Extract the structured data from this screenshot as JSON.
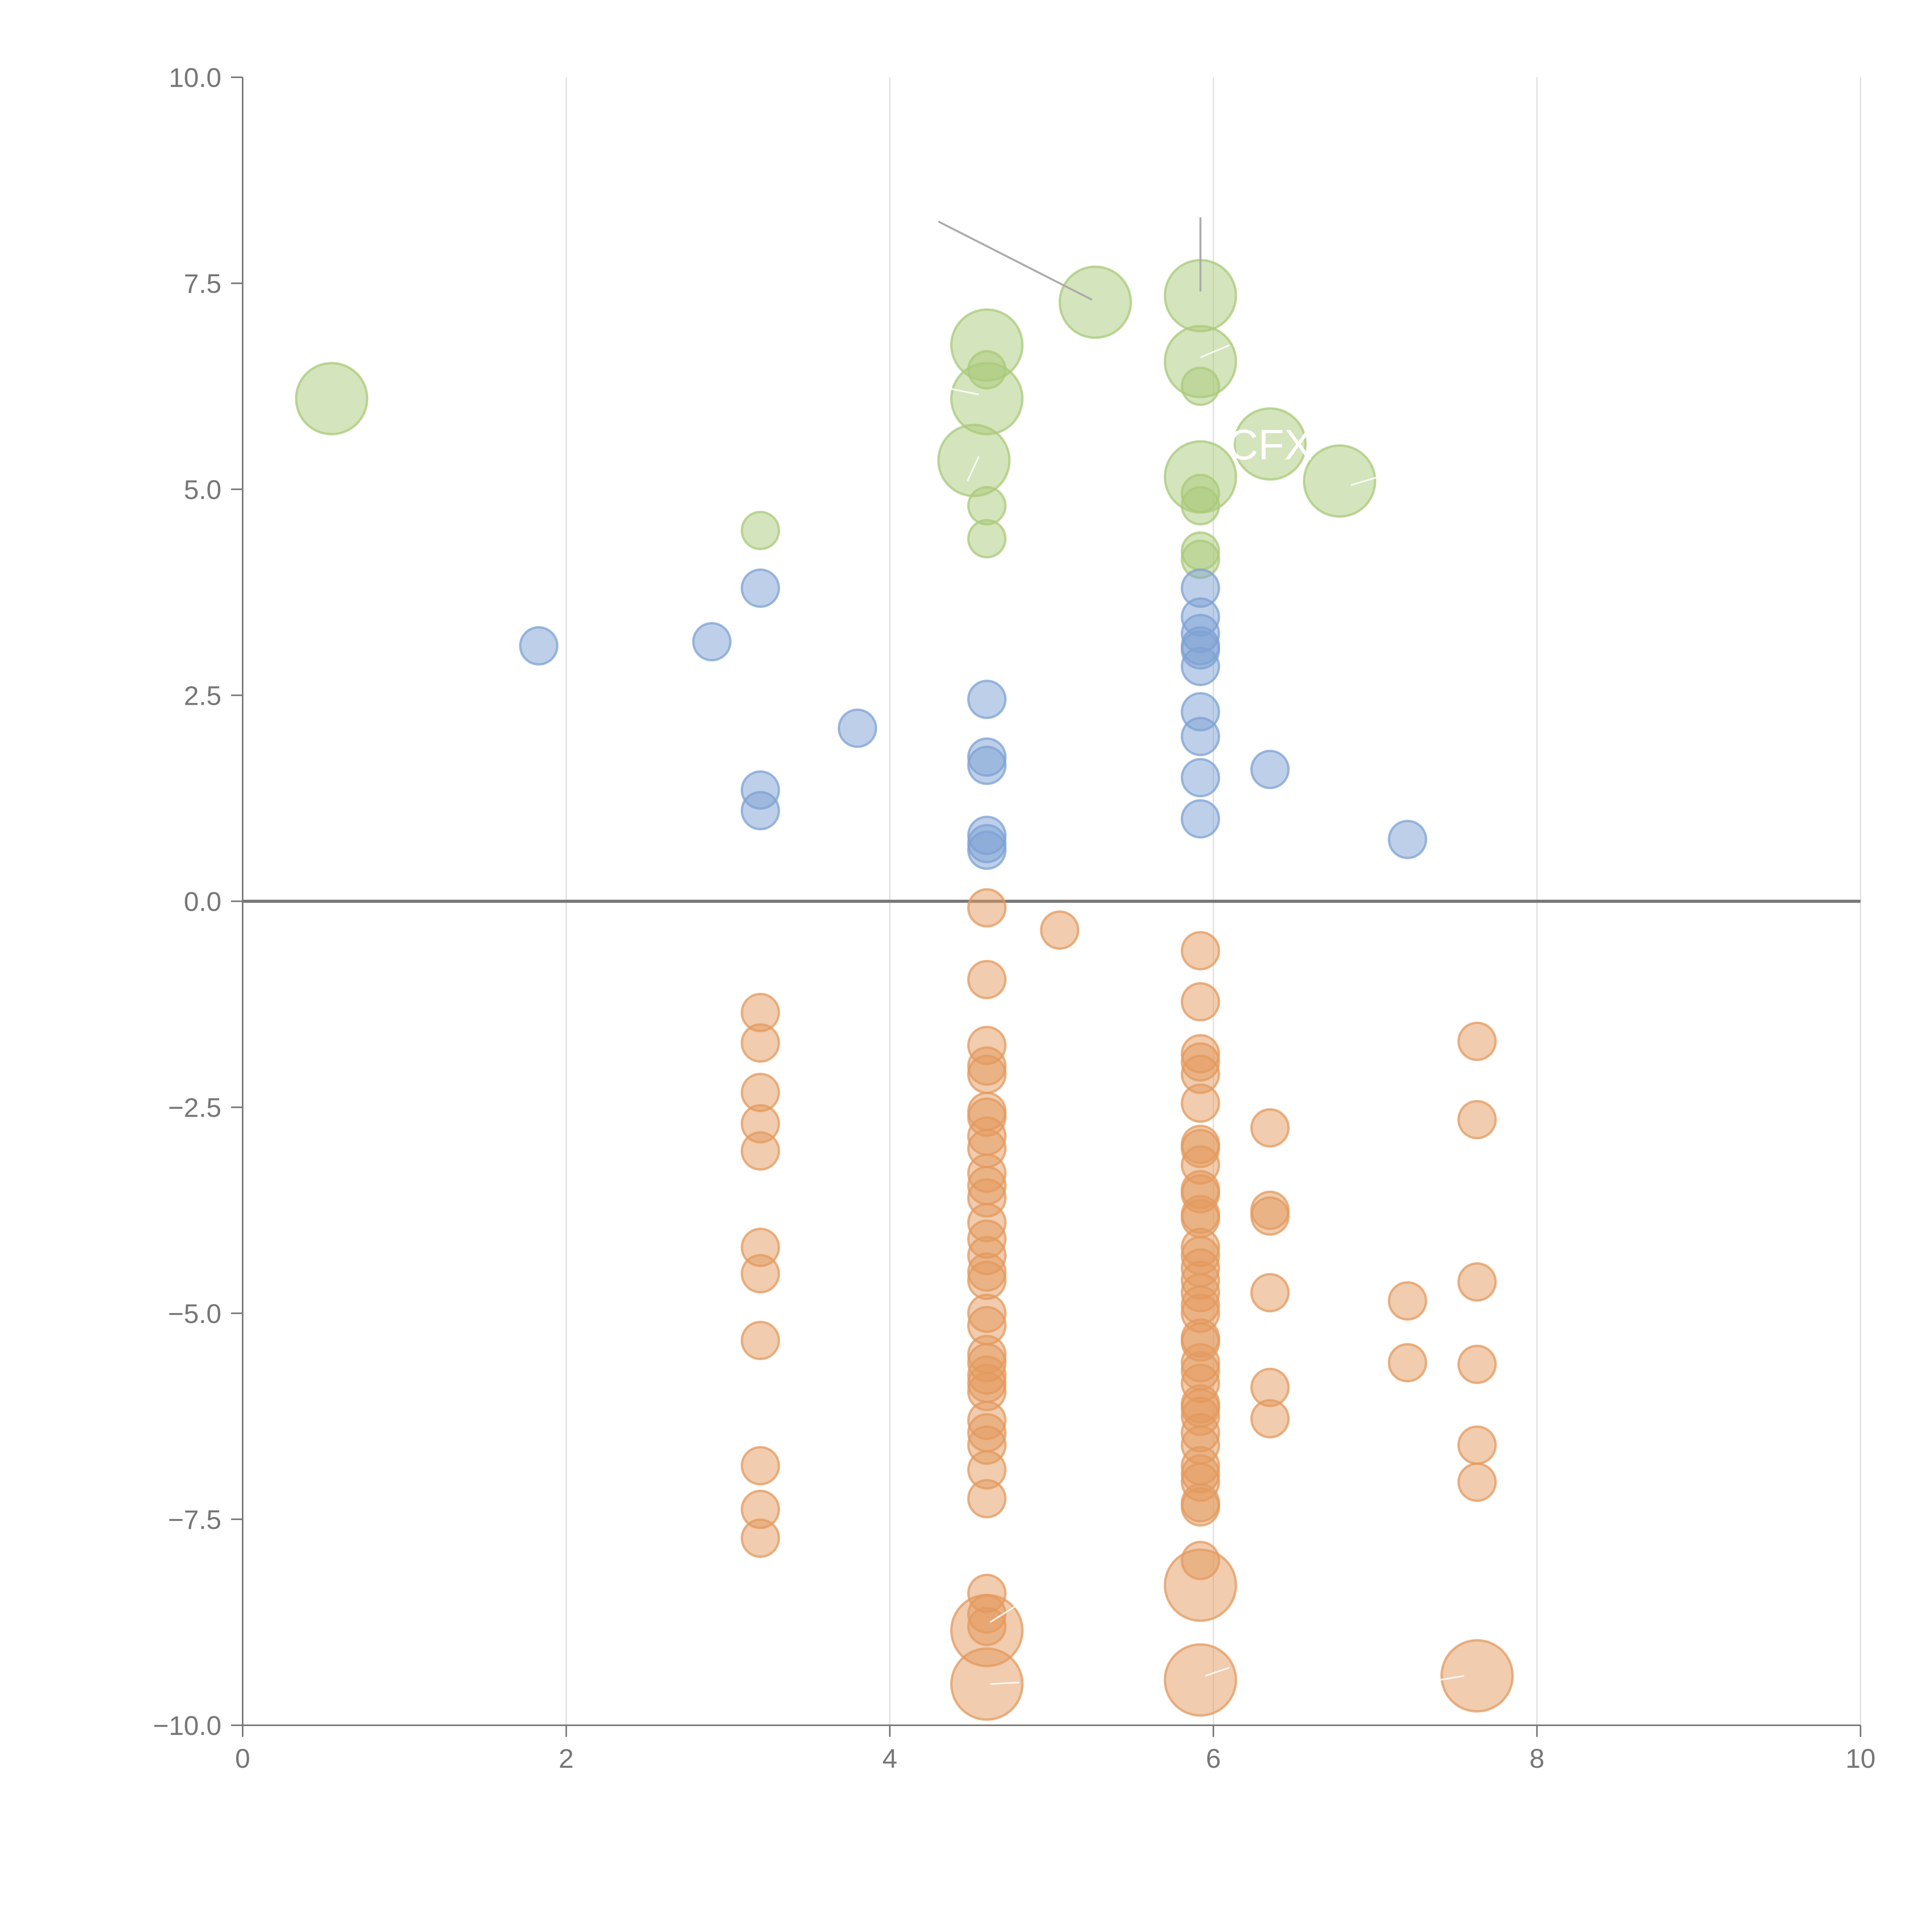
{
  "chart_data": {
    "type": "scatter",
    "title": "",
    "xlabel": "",
    "ylabel": "",
    "xlim": [
      0,
      10
    ],
    "ylim": [
      -10,
      10
    ],
    "x_ticks": [
      0,
      2,
      4,
      6,
      8,
      10
    ],
    "x_tick_labels": [
      "0",
      "2",
      "4",
      "6",
      "8",
      "10"
    ],
    "y_ticks": [
      10,
      7.5,
      5,
      2.5,
      0,
      -2.5,
      -5,
      -7.5,
      -10
    ],
    "y_tick_labels": [
      "10.0",
      "7.5",
      "5.0",
      "2.5",
      "0.0",
      "−2.5",
      "−5.0",
      "−7.5",
      "−10.0"
    ],
    "grid": "vertical",
    "zero_line": true,
    "point_labels": [
      {
        "text": "CFX",
        "x": 6.35,
        "y": 5.55
      }
    ],
    "series": [
      {
        "name": "green",
        "color": "#a9c97a",
        "points": [
          [
            0.55,
            6.1,
            2.0
          ],
          [
            4.6,
            6.75,
            2.0
          ],
          [
            4.6,
            6.45,
            1.0
          ],
          [
            4.6,
            6.1,
            2.0
          ],
          [
            4.52,
            5.35,
            2.0
          ],
          [
            4.6,
            4.8,
            1.0
          ],
          [
            4.6,
            4.4,
            1.0
          ],
          [
            3.2,
            4.5,
            1.0
          ],
          [
            5.27,
            7.27,
            2.0
          ],
          [
            5.92,
            7.35,
            2.0
          ],
          [
            5.92,
            6.55,
            2.0
          ],
          [
            5.92,
            6.25,
            1.0
          ],
          [
            5.92,
            5.15,
            2.0
          ],
          [
            5.92,
            4.95,
            1.0
          ],
          [
            5.92,
            4.8,
            1.0
          ],
          [
            5.92,
            4.25,
            1.0
          ],
          [
            5.92,
            4.15,
            1.0
          ],
          [
            6.35,
            5.55,
            2.0
          ],
          [
            6.78,
            5.1,
            2.0
          ]
        ]
      },
      {
        "name": "blue",
        "color": "#7ea1d4",
        "points": [
          [
            1.83,
            3.1,
            1.0
          ],
          [
            2.9,
            3.15,
            1.0
          ],
          [
            3.2,
            3.8,
            1.0
          ],
          [
            3.2,
            1.35,
            1.0
          ],
          [
            3.2,
            1.1,
            1.0
          ],
          [
            3.8,
            2.1,
            1.0
          ],
          [
            4.6,
            2.45,
            1.0
          ],
          [
            4.6,
            1.75,
            1.0
          ],
          [
            4.6,
            1.65,
            1.0
          ],
          [
            4.6,
            0.8,
            1.0
          ],
          [
            4.6,
            0.7,
            1.0
          ],
          [
            4.6,
            0.62,
            1.0
          ],
          [
            5.92,
            3.8,
            1.0
          ],
          [
            5.92,
            3.45,
            1.0
          ],
          [
            5.92,
            3.25,
            1.0
          ],
          [
            5.92,
            3.1,
            1.0
          ],
          [
            5.92,
            3.05,
            1.0
          ],
          [
            5.92,
            2.85,
            1.0
          ],
          [
            5.92,
            2.3,
            1.0
          ],
          [
            5.92,
            2.0,
            1.0
          ],
          [
            5.92,
            1.5,
            1.0
          ],
          [
            5.92,
            1.0,
            1.0
          ],
          [
            6.35,
            1.6,
            1.0
          ],
          [
            7.2,
            0.75,
            1.0
          ]
        ]
      },
      {
        "name": "orange",
        "color": "#e39a5e",
        "points": [
          [
            3.2,
            -1.35,
            1.0
          ],
          [
            3.2,
            -1.72,
            1.0
          ],
          [
            3.2,
            -2.32,
            1.0
          ],
          [
            3.2,
            -2.7,
            1.0
          ],
          [
            3.2,
            -3.03,
            1.0
          ],
          [
            3.2,
            -4.2,
            1.0
          ],
          [
            3.2,
            -4.52,
            1.0
          ],
          [
            3.2,
            -5.33,
            1.0
          ],
          [
            3.2,
            -6.85,
            1.0
          ],
          [
            3.2,
            -7.38,
            1.0
          ],
          [
            3.2,
            -7.73,
            1.0
          ],
          [
            4.6,
            -0.08,
            1.0
          ],
          [
            4.6,
            -0.95,
            1.0
          ],
          [
            4.6,
            -1.75,
            1.0
          ],
          [
            4.6,
            -2.0,
            1.0
          ],
          [
            4.6,
            -2.1,
            1.0
          ],
          [
            4.6,
            -2.55,
            1.0
          ],
          [
            4.6,
            -2.62,
            1.0
          ],
          [
            4.6,
            -2.85,
            1.0
          ],
          [
            4.6,
            -3.0,
            1.0
          ],
          [
            4.6,
            -3.3,
            1.0
          ],
          [
            4.6,
            -3.45,
            1.0
          ],
          [
            4.6,
            -3.6,
            1.0
          ],
          [
            4.6,
            -3.9,
            1.0
          ],
          [
            4.6,
            -4.1,
            1.0
          ],
          [
            4.6,
            -4.3,
            1.0
          ],
          [
            4.6,
            -4.5,
            1.0
          ],
          [
            4.6,
            -4.6,
            1.0
          ],
          [
            4.6,
            -5.0,
            1.0
          ],
          [
            4.6,
            -5.15,
            1.0
          ],
          [
            4.6,
            -5.5,
            1.0
          ],
          [
            4.6,
            -5.6,
            1.0
          ],
          [
            4.6,
            -5.75,
            1.0
          ],
          [
            4.6,
            -5.85,
            1.0
          ],
          [
            4.6,
            -5.95,
            1.0
          ],
          [
            4.6,
            -6.3,
            1.0
          ],
          [
            4.6,
            -6.45,
            1.0
          ],
          [
            4.6,
            -6.6,
            1.0
          ],
          [
            4.6,
            -6.9,
            1.0
          ],
          [
            4.6,
            -7.25,
            1.0
          ],
          [
            4.6,
            -8.4,
            1.0
          ],
          [
            4.6,
            -8.65,
            1.0
          ],
          [
            4.6,
            -8.8,
            1.0
          ],
          [
            4.6,
            -8.85,
            2.0
          ],
          [
            4.6,
            -9.5,
            2.0
          ],
          [
            5.05,
            -0.35,
            1.0
          ],
          [
            5.92,
            -0.6,
            1.0
          ],
          [
            5.92,
            -1.22,
            1.0
          ],
          [
            5.92,
            -1.85,
            1.0
          ],
          [
            5.92,
            -1.95,
            1.0
          ],
          [
            5.92,
            -2.1,
            1.0
          ],
          [
            5.92,
            -2.45,
            1.0
          ],
          [
            5.92,
            -2.95,
            1.0
          ],
          [
            5.92,
            -3.0,
            1.0
          ],
          [
            5.92,
            -3.2,
            1.0
          ],
          [
            5.92,
            -3.5,
            1.0
          ],
          [
            5.92,
            -3.55,
            1.0
          ],
          [
            5.92,
            -3.8,
            1.0
          ],
          [
            5.92,
            -3.85,
            1.0
          ],
          [
            5.92,
            -4.2,
            1.0
          ],
          [
            5.92,
            -4.3,
            1.0
          ],
          [
            5.92,
            -4.45,
            1.0
          ],
          [
            5.92,
            -4.6,
            1.0
          ],
          [
            5.92,
            -4.75,
            1.0
          ],
          [
            5.92,
            -4.9,
            1.0
          ],
          [
            5.92,
            -5.0,
            1.0
          ],
          [
            5.92,
            -5.3,
            1.0
          ],
          [
            5.92,
            -5.35,
            1.0
          ],
          [
            5.92,
            -5.6,
            1.0
          ],
          [
            5.92,
            -5.7,
            1.0
          ],
          [
            5.92,
            -5.85,
            1.0
          ],
          [
            5.92,
            -6.1,
            1.0
          ],
          [
            5.92,
            -6.15,
            1.0
          ],
          [
            5.92,
            -6.25,
            1.0
          ],
          [
            5.92,
            -6.45,
            1.0
          ],
          [
            5.92,
            -6.6,
            1.0
          ],
          [
            5.92,
            -6.85,
            1.0
          ],
          [
            5.92,
            -6.95,
            1.0
          ],
          [
            5.92,
            -7.05,
            1.0
          ],
          [
            5.92,
            -7.3,
            1.0
          ],
          [
            5.92,
            -7.35,
            1.0
          ],
          [
            5.92,
            -8.0,
            1.0
          ],
          [
            5.92,
            -8.3,
            2.0
          ],
          [
            5.92,
            -9.45,
            2.0
          ],
          [
            6.35,
            -2.75,
            1.0
          ],
          [
            6.35,
            -3.75,
            1.0
          ],
          [
            6.35,
            -3.82,
            1.0
          ],
          [
            6.35,
            -4.75,
            1.0
          ],
          [
            6.35,
            -5.9,
            1.0
          ],
          [
            6.35,
            -6.28,
            1.0
          ],
          [
            7.2,
            -4.85,
            1.0
          ],
          [
            7.2,
            -5.6,
            1.0
          ],
          [
            7.63,
            -1.7,
            1.0
          ],
          [
            7.63,
            -2.65,
            1.0
          ],
          [
            7.63,
            -4.62,
            1.0
          ],
          [
            7.63,
            -5.62,
            1.0
          ],
          [
            7.63,
            -6.6,
            1.0
          ],
          [
            7.63,
            -7.05,
            1.0
          ],
          [
            7.63,
            -9.4,
            2.0
          ]
        ]
      }
    ]
  }
}
